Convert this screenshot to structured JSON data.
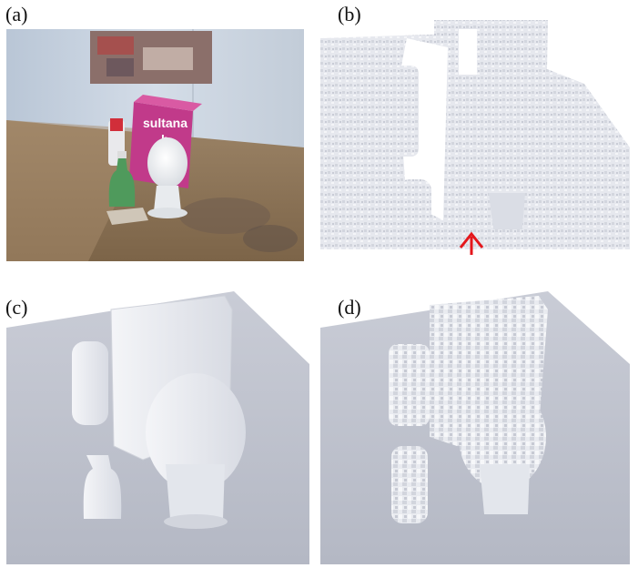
{
  "figure": {
    "panels": [
      {
        "id": "a",
        "label": "(a)"
      },
      {
        "id": "b",
        "label": "(b)"
      },
      {
        "id": "c",
        "label": "(c)"
      },
      {
        "id": "d",
        "label": "(d)"
      }
    ],
    "box_text": {
      "line1": "sultana",
      "line2": "b"
    }
  }
}
